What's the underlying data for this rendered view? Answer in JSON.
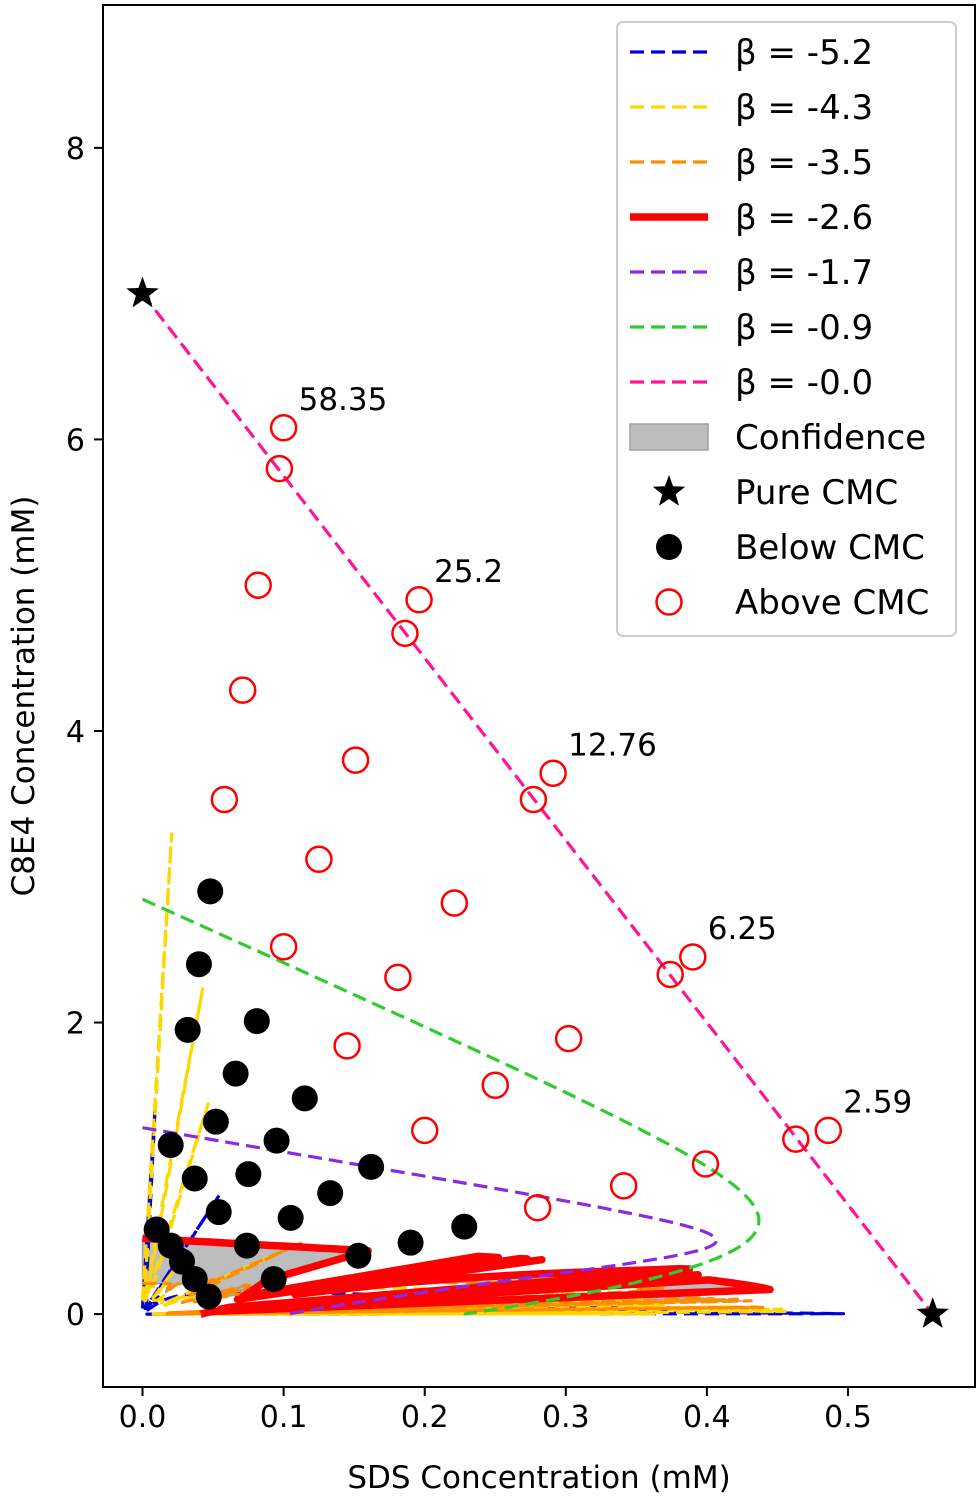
{
  "chart_data": {
    "type": "line",
    "title": "",
    "xlabel": "SDS Concentration (mM)",
    "ylabel": "C8E4 Concentration (mM)",
    "xlim": [
      -0.028,
      0.59
    ],
    "ylim": [
      -0.5,
      8.98
    ],
    "x_ticks": [
      "0.0",
      "0.1",
      "0.2",
      "0.3",
      "0.4",
      "0.5"
    ],
    "y_ticks": [
      "0",
      "2",
      "4",
      "6",
      "8"
    ],
    "grid": false,
    "legend_position": "top-right",
    "pure_cmc": {
      "sds": 0.56,
      "c8e4": 7.0
    },
    "series": [
      {
        "name": "β = -5.2",
        "beta": -5.2,
        "color": "#0000dd",
        "style": "dashed"
      },
      {
        "name": "β = -4.3",
        "beta": -4.3,
        "color": "#ffd700",
        "style": "dashed"
      },
      {
        "name": "β = -3.5",
        "beta": -3.5,
        "color": "#ff8c00",
        "style": "dashed"
      },
      {
        "name": "β = -2.6",
        "beta": -2.6,
        "color": "#ff0000",
        "style": "solid"
      },
      {
        "name": "β = -1.7",
        "beta": -1.7,
        "color": "#8a2be2",
        "style": "dashed"
      },
      {
        "name": "β = -0.9",
        "beta": -0.9,
        "color": "#2ecc2e",
        "style": "dashed"
      },
      {
        "name": "β = -0.0",
        "beta": 0.0,
        "color": "#ff1493",
        "style": "dashed"
      }
    ],
    "confidence": {
      "name": "Confidence",
      "beta_low": -3.5,
      "beta_high": -2.6,
      "color": "#bdbdbd"
    },
    "markers_legend": {
      "pure": "Pure CMC",
      "below": "Below CMC",
      "above": "Above CMC"
    },
    "below_cmc_points": [
      [
        0.048,
        2.9
      ],
      [
        0.04,
        2.4
      ],
      [
        0.032,
        1.95
      ],
      [
        0.081,
        2.01
      ],
      [
        0.066,
        1.65
      ],
      [
        0.115,
        1.48
      ],
      [
        0.052,
        1.32
      ],
      [
        0.02,
        1.16
      ],
      [
        0.095,
        1.19
      ],
      [
        0.037,
        0.93
      ],
      [
        0.075,
        0.96
      ],
      [
        0.162,
        1.01
      ],
      [
        0.133,
        0.83
      ],
      [
        0.054,
        0.7
      ],
      [
        0.105,
        0.66
      ],
      [
        0.228,
        0.6
      ],
      [
        0.01,
        0.58
      ],
      [
        0.02,
        0.47
      ],
      [
        0.028,
        0.36
      ],
      [
        0.074,
        0.47
      ],
      [
        0.19,
        0.49
      ],
      [
        0.153,
        0.4
      ],
      [
        0.037,
        0.24
      ],
      [
        0.093,
        0.24
      ],
      [
        0.047,
        0.12
      ]
    ],
    "above_cmc_points": [
      [
        0.1,
        6.08
      ],
      [
        0.097,
        5.8
      ],
      [
        0.196,
        4.9
      ],
      [
        0.186,
        4.67
      ],
      [
        0.291,
        3.71
      ],
      [
        0.277,
        3.53
      ],
      [
        0.39,
        2.45
      ],
      [
        0.374,
        2.33
      ],
      [
        0.486,
        1.26
      ],
      [
        0.463,
        1.2
      ],
      [
        0.082,
        5.0
      ],
      [
        0.151,
        3.8
      ],
      [
        0.221,
        2.82
      ],
      [
        0.302,
        1.89
      ],
      [
        0.399,
        1.03
      ],
      [
        0.071,
        4.28
      ],
      [
        0.125,
        3.12
      ],
      [
        0.181,
        2.31
      ],
      [
        0.25,
        1.57
      ],
      [
        0.341,
        0.88
      ],
      [
        0.058,
        3.53
      ],
      [
        0.1,
        2.52
      ],
      [
        0.145,
        1.84
      ],
      [
        0.2,
        1.26
      ],
      [
        0.28,
        0.73
      ]
    ],
    "annotations": [
      {
        "text": "58.35",
        "x": 0.1,
        "y": 6.08
      },
      {
        "text": "25.2",
        "x": 0.196,
        "y": 4.9
      },
      {
        "text": "12.76",
        "x": 0.291,
        "y": 3.71
      },
      {
        "text": "6.25",
        "x": 0.39,
        "y": 2.45
      },
      {
        "text": "2.59",
        "x": 0.486,
        "y": 1.26
      }
    ]
  }
}
